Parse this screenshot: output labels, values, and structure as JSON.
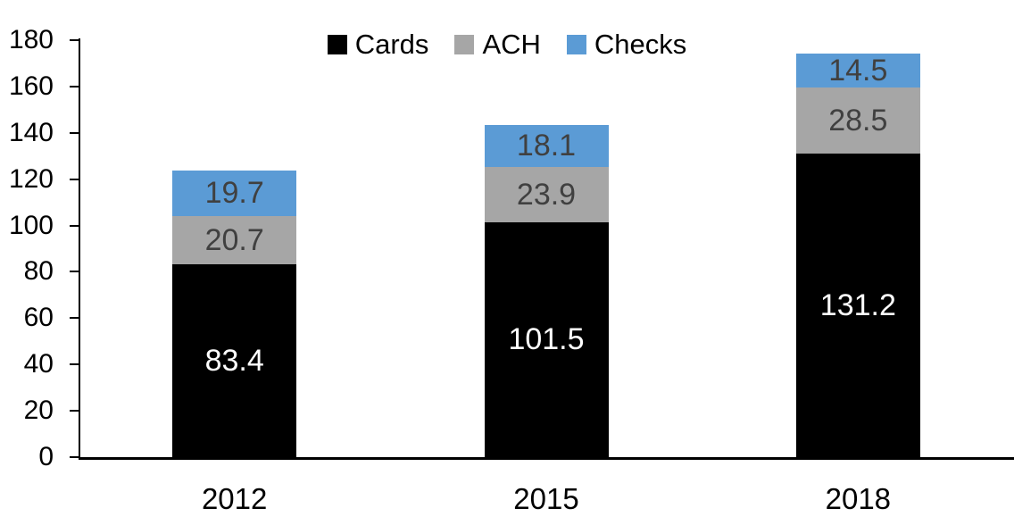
{
  "chart_data": {
    "type": "bar",
    "stacked": true,
    "title": "",
    "xlabel": "",
    "ylabel": "",
    "categories": [
      "2012",
      "2015",
      "2018"
    ],
    "series": [
      {
        "name": "Cards",
        "values": [
          83.4,
          101.5,
          131.2
        ],
        "color": "#000000",
        "label_color": "#FFFFFF"
      },
      {
        "name": "ACH",
        "values": [
          20.7,
          23.9,
          28.5
        ],
        "color": "#A6A6A6",
        "label_color": "#404040"
      },
      {
        "name": "Checks",
        "values": [
          19.7,
          18.1,
          14.5
        ],
        "color": "#5B9BD5",
        "label_color": "#404040"
      }
    ],
    "totals": [
      123.8,
      143.5,
      174.2
    ],
    "ylim": [
      0,
      180
    ],
    "yticks": [
      0,
      20,
      40,
      60,
      80,
      100,
      120,
      140,
      160,
      180
    ],
    "grid": false,
    "legend_position": "top-center",
    "axis_color": "#000000",
    "background_color": "#FFFFFF"
  }
}
